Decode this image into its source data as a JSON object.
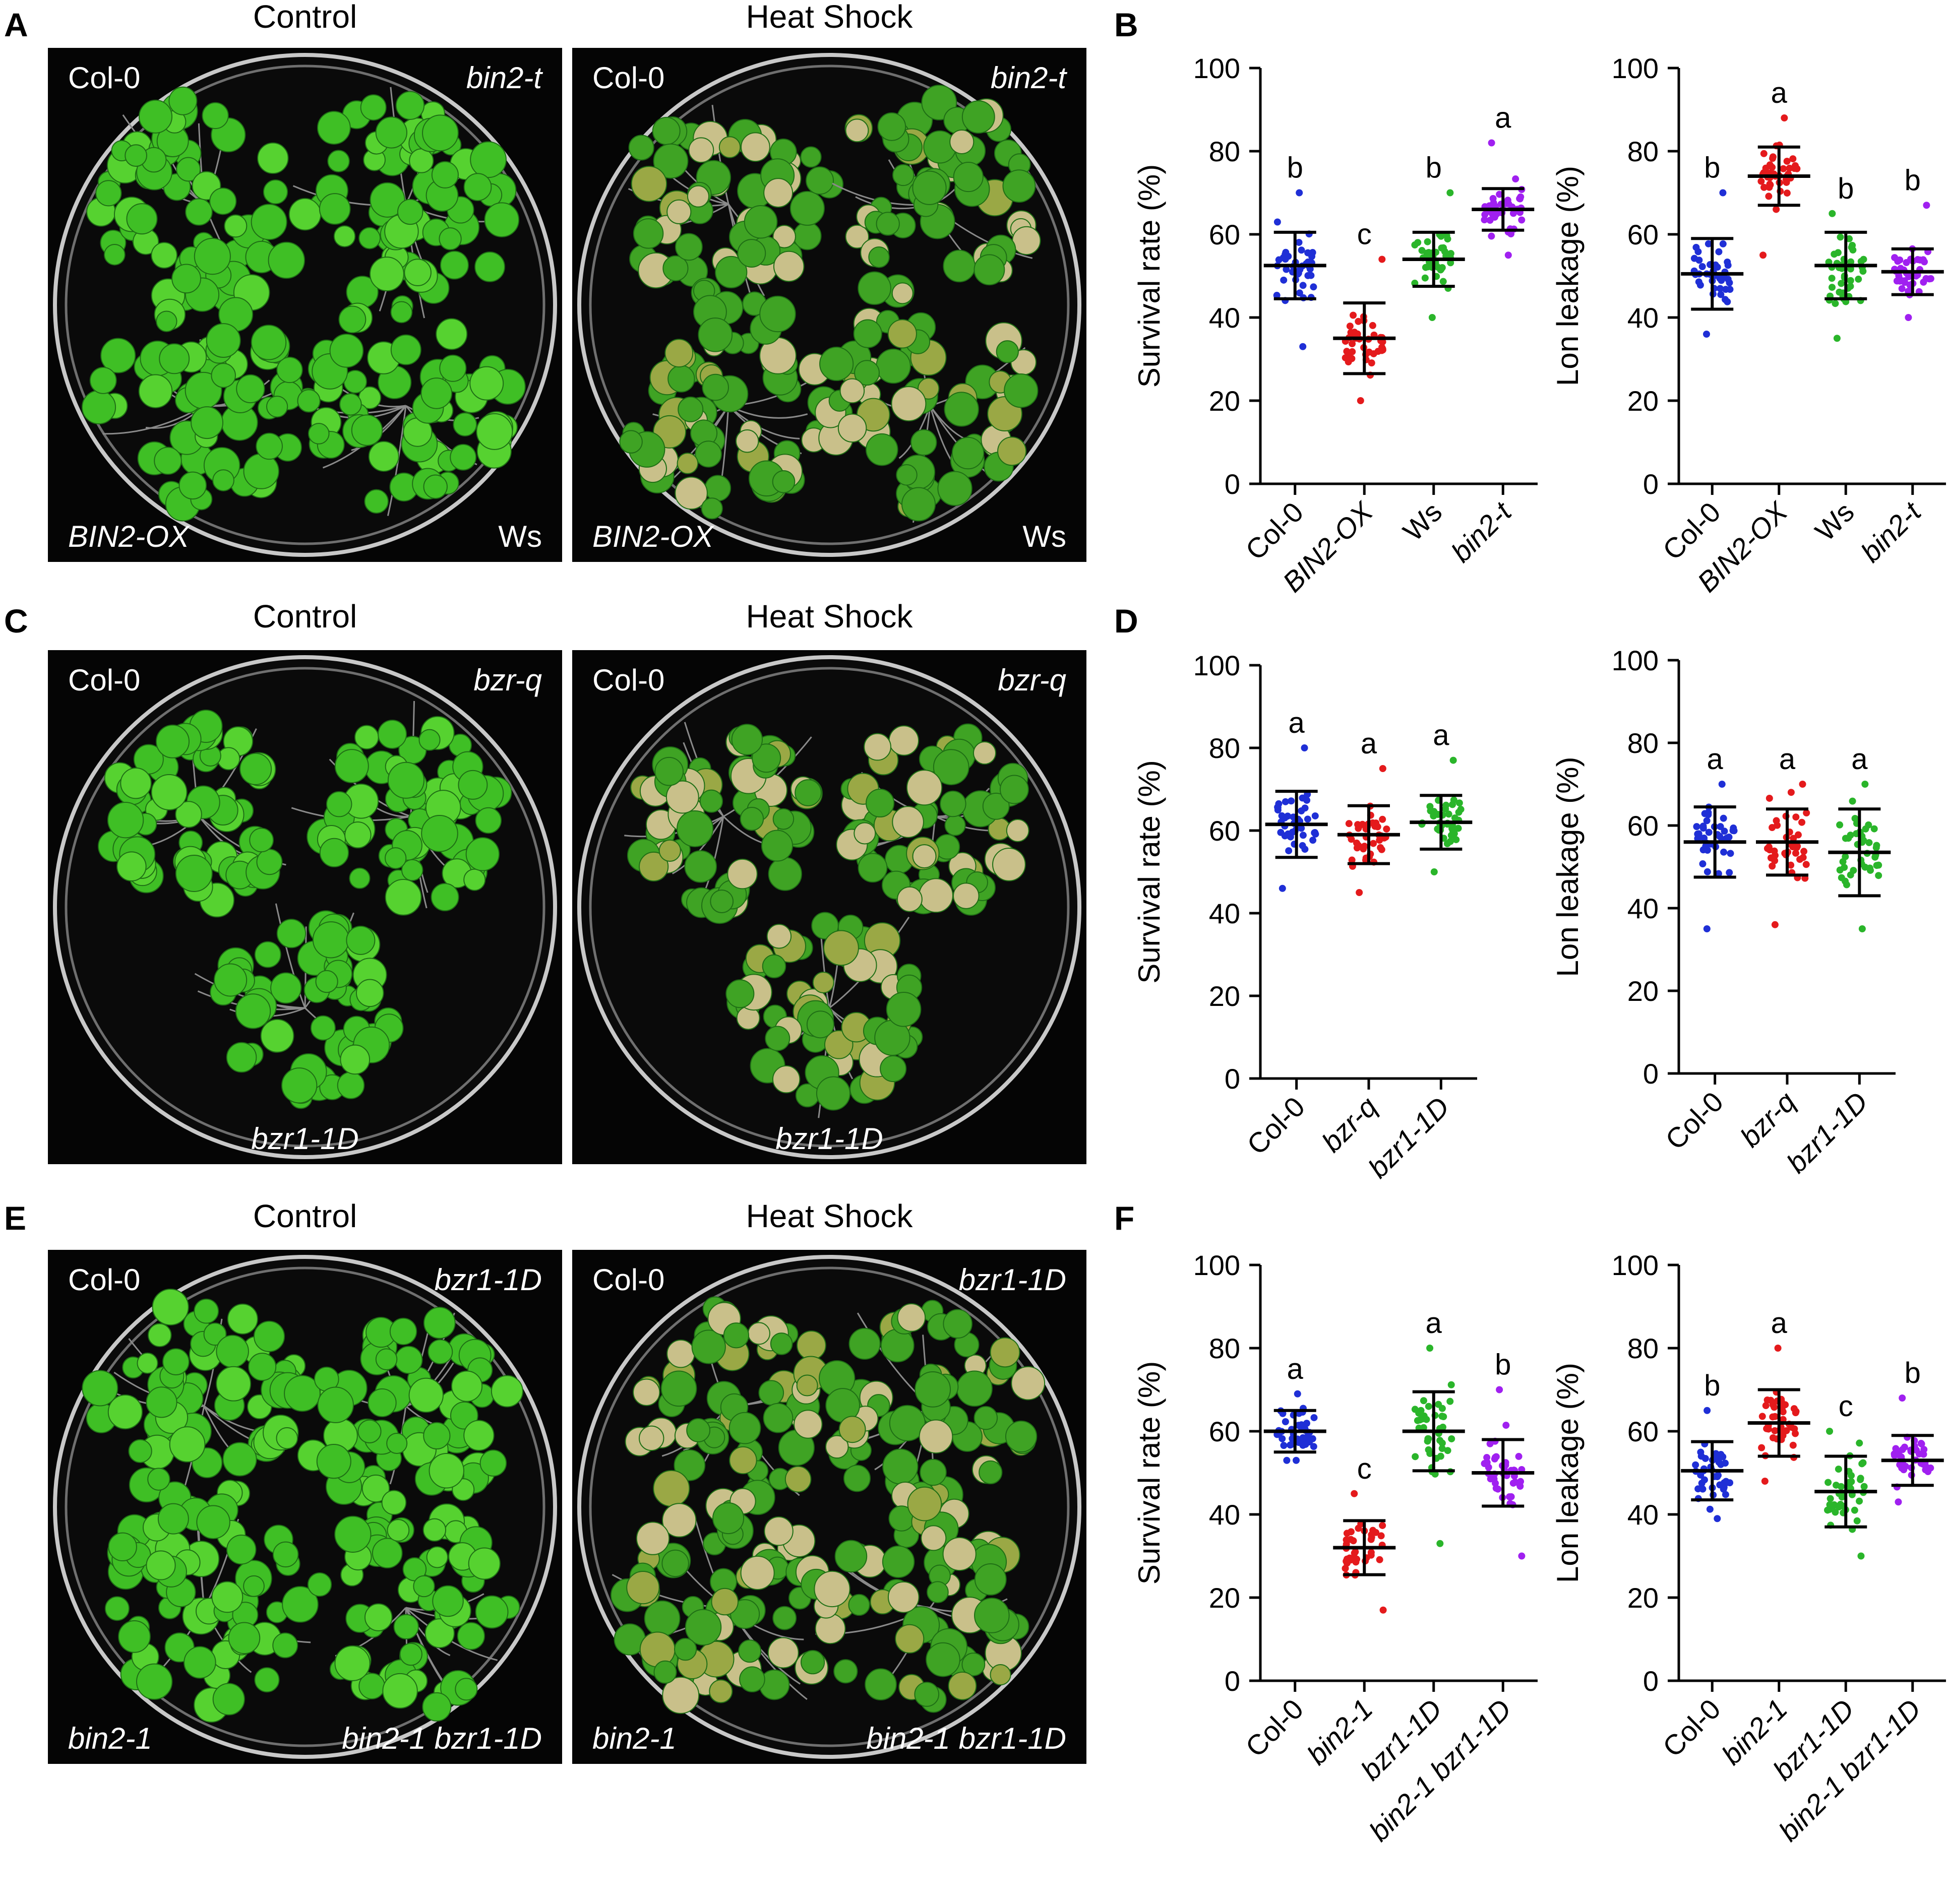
{
  "figure": {
    "rows": [
      {
        "photo_panel": {
          "letter": "A",
          "conditions": [
            "Control",
            "Heat Shock"
          ],
          "labels": [
            {
              "pos": "top-left",
              "text": "Col-0",
              "italic": false
            },
            {
              "pos": "top-right",
              "text": "bin2-t",
              "italic": true
            },
            {
              "pos": "bottom-left",
              "text": "BIN2-OX",
              "italic": true
            },
            {
              "pos": "bottom-right",
              "text": "Ws",
              "italic": false
            }
          ]
        }
      },
      {
        "photo_panel": {
          "letter": "C",
          "conditions": [
            "Control",
            "Heat Shock"
          ],
          "labels": [
            {
              "pos": "top-left",
              "text": "Col-0",
              "italic": false
            },
            {
              "pos": "top-right",
              "text": "bzr-q",
              "italic": true
            },
            {
              "pos": "bottom-center",
              "text": "bzr1-1D",
              "italic": true
            }
          ]
        }
      },
      {
        "photo_panel": {
          "letter": "E",
          "conditions": [
            "Control",
            "Heat Shock"
          ],
          "labels": [
            {
              "pos": "top-left",
              "text": "Col-0",
              "italic": false
            },
            {
              "pos": "top-right",
              "text": "bzr1-1D",
              "italic": true
            },
            {
              "pos": "bottom-left",
              "text": "bin2-1",
              "italic": true
            },
            {
              "pos": "bottom-right",
              "text": "bin2-1 bzr1-1D",
              "italic": true
            }
          ]
        }
      }
    ]
  },
  "chart_data": [
    {
      "panel": "B",
      "type": "scatter",
      "ylabel": "Survival rate (%)",
      "ylim": [
        0,
        100
      ],
      "yticks": [
        0,
        20,
        40,
        60,
        80,
        100
      ],
      "categories": [
        "Col-0",
        "BIN2-OX",
        "Ws",
        "bin2-t"
      ],
      "italic": [
        false,
        true,
        false,
        true
      ],
      "colors": [
        "#1f2fd6",
        "#e41a1c",
        "#2ab52a",
        "#a020f0"
      ],
      "mean": [
        52.5,
        35,
        54,
        66
      ],
      "sd": [
        8,
        8.5,
        6.5,
        5
      ],
      "min": [
        33,
        20,
        40,
        55
      ],
      "max": [
        70,
        54,
        70,
        82
      ],
      "significance": [
        "b",
        "c",
        "b",
        "a"
      ]
    },
    {
      "panel": "B",
      "type": "scatter",
      "ylabel": "Lon leakage (%)",
      "ylim": [
        0,
        100
      ],
      "yticks": [
        0,
        20,
        40,
        60,
        80,
        100
      ],
      "categories": [
        "Col-0",
        "BIN2-OX",
        "Ws",
        "bin2-t"
      ],
      "italic": [
        false,
        true,
        false,
        true
      ],
      "colors": [
        "#1f2fd6",
        "#e41a1c",
        "#2ab52a",
        "#a020f0"
      ],
      "mean": [
        50.5,
        74,
        52.5,
        51
      ],
      "sd": [
        8.5,
        7,
        8,
        5.5
      ],
      "min": [
        36,
        55,
        35,
        40
      ],
      "max": [
        70,
        88,
        65,
        67
      ],
      "significance": [
        "b",
        "a",
        "b",
        "b"
      ]
    },
    {
      "panel": "D",
      "type": "scatter",
      "ylabel": "Survival rate (%)",
      "ylim": [
        0,
        100
      ],
      "yticks": [
        0,
        20,
        40,
        60,
        80,
        100
      ],
      "categories": [
        "Col-0",
        "bzr-q",
        "bzr1-1D"
      ],
      "italic": [
        false,
        true,
        true
      ],
      "colors": [
        "#1f2fd6",
        "#e41a1c",
        "#2ab52a"
      ],
      "mean": [
        61.5,
        59,
        62
      ],
      "sd": [
        8,
        7,
        6.5
      ],
      "min": [
        46,
        45,
        50
      ],
      "max": [
        80,
        75,
        77
      ],
      "significance": [
        "a",
        "a",
        "a"
      ]
    },
    {
      "panel": "D",
      "type": "scatter",
      "ylabel": "Lon leakage (%)",
      "ylim": [
        0,
        100
      ],
      "yticks": [
        0,
        20,
        40,
        60,
        80,
        100
      ],
      "categories": [
        "Col-0",
        "bzr-q",
        "bzr1-1D"
      ],
      "italic": [
        false,
        true,
        true
      ],
      "colors": [
        "#1f2fd6",
        "#e41a1c",
        "#2ab52a"
      ],
      "mean": [
        56,
        56,
        53.5
      ],
      "sd": [
        8.5,
        8,
        10.5
      ],
      "min": [
        35,
        36,
        35
      ],
      "max": [
        70,
        70,
        70
      ],
      "significance": [
        "a",
        "a",
        "a"
      ]
    },
    {
      "panel": "F",
      "type": "scatter",
      "ylabel": "Survival rate (%)",
      "ylim": [
        0,
        100
      ],
      "yticks": [
        0,
        20,
        40,
        60,
        80,
        100
      ],
      "categories": [
        "Col-0",
        "bin2-1",
        "bzr1-1D",
        "bin2-1 bzr1-1D"
      ],
      "italic": [
        false,
        true,
        true,
        true
      ],
      "colors": [
        "#1f2fd6",
        "#e41a1c",
        "#2ab52a",
        "#a020f0"
      ],
      "mean": [
        60,
        32,
        60,
        50
      ],
      "sd": [
        5,
        6.5,
        9.5,
        8
      ],
      "min": [
        53,
        17,
        33,
        30
      ],
      "max": [
        69,
        45,
        80,
        70
      ],
      "significance": [
        "a",
        "c",
        "a",
        "b"
      ]
    },
    {
      "panel": "F",
      "type": "scatter",
      "ylabel": "Lon leakage (%)",
      "ylim": [
        0,
        100
      ],
      "yticks": [
        0,
        20,
        40,
        60,
        80,
        100
      ],
      "categories": [
        "Col-0",
        "bin2-1",
        "bzr1-1D",
        "bin2-1 bzr1-1D"
      ],
      "italic": [
        false,
        true,
        true,
        true
      ],
      "colors": [
        "#1f2fd6",
        "#e41a1c",
        "#2ab52a",
        "#a020f0"
      ],
      "mean": [
        50.5,
        62,
        45.5,
        53
      ],
      "sd": [
        7,
        8,
        8.5,
        6
      ],
      "min": [
        39,
        48,
        30,
        43
      ],
      "max": [
        65,
        80,
        60,
        68
      ],
      "significance": [
        "b",
        "a",
        "c",
        "b"
      ]
    }
  ]
}
